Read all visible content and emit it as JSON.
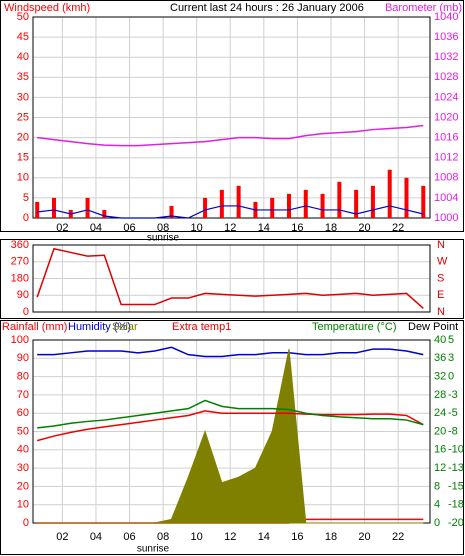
{
  "chart_data": [
    {
      "type": "bar",
      "title": "Current last 24 hours : 26 January 2006",
      "annotation": "sunrise",
      "x": [
        0.5,
        1.5,
        2.5,
        3.5,
        4.5,
        5.5,
        6.5,
        7.5,
        8.5,
        9.5,
        10.5,
        11.5,
        12.5,
        13.5,
        14.5,
        15.5,
        16.5,
        17.5,
        18.5,
        19.5,
        20.5,
        21.5,
        22.5,
        23.5
      ],
      "xlim": [
        0.25,
        23.9
      ],
      "xticks": [
        {
          "value": 2,
          "label": "02"
        },
        {
          "value": 4,
          "label": "04"
        },
        {
          "value": 6,
          "label": "06"
        },
        {
          "value": 8,
          "label": "08"
        },
        10,
        12,
        14,
        16,
        18,
        20,
        22
      ],
      "ylim": [
        0,
        50
      ],
      "yticks": [
        0,
        5,
        10,
        15,
        20,
        25,
        30,
        35,
        40,
        45,
        50
      ],
      "y2lim": [
        1000,
        1040
      ],
      "y2ticks": [
        1000,
        1004,
        1008,
        1012,
        1016,
        1020,
        1024,
        1028,
        1032,
        1036,
        1040
      ],
      "grid": true,
      "series": [
        {
          "name": "Windspeed (kmh)",
          "color": "#ff0000",
          "style": "bar",
          "values": [
            4,
            5,
            2,
            5,
            2,
            0,
            0,
            0,
            3,
            0,
            5,
            7,
            8,
            4,
            5,
            6,
            7,
            6,
            9,
            7,
            8,
            12,
            10,
            8
          ],
          "average_color": "#0000cc",
          "average": [
            1.5,
            2,
            1,
            2,
            0.5,
            0,
            0,
            0,
            0.5,
            0,
            2,
            3,
            3,
            2,
            2,
            2,
            3,
            2,
            2,
            1,
            2,
            3,
            2,
            1
          ]
        },
        {
          "name": "Barometer (mb)",
          "color": "#e020e0",
          "style": "line",
          "axis": "y2",
          "values": [
            1016,
            1015.6,
            1015.2,
            1014.8,
            1014.5,
            1014.4,
            1014.4,
            1014.6,
            1014.8,
            1015,
            1015.2,
            1015.6,
            1016,
            1016,
            1015.8,
            1015.8,
            1016.4,
            1016.8,
            1017,
            1017.2,
            1017.6,
            1017.8,
            1018,
            1018.4
          ]
        }
      ]
    },
    {
      "type": "line",
      "x": [
        0.5,
        1.5,
        2.5,
        3.5,
        4.5,
        5.5,
        6.5,
        7.5,
        8.5,
        9.5,
        10.5,
        11.5,
        12.5,
        13.5,
        14.5,
        15.5,
        16.5,
        17.5,
        18.5,
        19.5,
        20.5,
        21.5,
        22.5,
        23.5
      ],
      "xlim": [
        0.25,
        23.9
      ],
      "xticks": [
        2,
        4,
        6,
        8,
        10,
        12,
        14,
        16,
        18,
        20,
        22
      ],
      "ylim": [
        0,
        360
      ],
      "yticks": [
        0,
        90,
        180,
        270,
        360
      ],
      "y2lim": [
        0,
        360
      ],
      "y2ticks": [
        {
          "value": 0,
          "label": "N"
        },
        {
          "value": 90,
          "label": "E"
        },
        {
          "value": 180,
          "label": "S"
        },
        {
          "value": 270,
          "label": "W"
        },
        {
          "value": 360,
          "label": "N"
        }
      ],
      "grid": true,
      "series": [
        {
          "color": "#dd0000",
          "style": "line",
          "values": [
            80,
            340,
            320,
            300,
            305,
            40,
            40,
            40,
            75,
            75,
            100,
            95,
            90,
            85,
            90,
            95,
            100,
            90,
            95,
            100,
            90,
            95,
            100,
            20
          ]
        }
      ]
    },
    {
      "type": "line",
      "annotation": "sunrise",
      "x": [
        0.5,
        1.5,
        2.5,
        3.5,
        4.5,
        5.5,
        6.5,
        7.5,
        8.5,
        9.5,
        10.5,
        11.5,
        12.5,
        13.5,
        14.5,
        15.5,
        16.5,
        17.5,
        18.5,
        19.5,
        20.5,
        21.5,
        22.5,
        23.5
      ],
      "xlim": [
        0.25,
        23.9
      ],
      "xticks": [
        {
          "value": 2,
          "label": "02"
        },
        {
          "value": 4,
          "label": "04"
        },
        {
          "value": 6,
          "label": "06"
        },
        {
          "value": 8,
          "label": "08"
        },
        10,
        12,
        14,
        16,
        18,
        20,
        22
      ],
      "ylim": [
        0,
        100
      ],
      "yticks": [
        0,
        10,
        20,
        30,
        40,
        50,
        60,
        70,
        80,
        90,
        100
      ],
      "y2lim": [
        0,
        40
      ],
      "y2ticks": [
        0,
        4,
        8,
        12,
        16,
        20,
        24,
        28,
        32,
        36,
        40
      ],
      "y3lim": [
        -20,
        5
      ],
      "y3ticks": [
        5,
        {
          "value": 2.5,
          "label": "3"
        },
        0,
        {
          "value": -2.5,
          "label": "-3"
        },
        -5,
        {
          "value": -7.5,
          "label": "-8"
        },
        -10,
        {
          "value": -12.5,
          "label": "-13"
        },
        -15,
        {
          "value": -17.5,
          "label": "-18"
        },
        -20
      ],
      "grid": true,
      "series": [
        {
          "name": "Rainfall (mm)",
          "color": "#ff0000",
          "style": "line",
          "values": [
            0,
            0,
            0,
            0,
            0,
            0,
            0,
            0,
            0,
            0,
            0,
            0,
            0,
            0,
            0,
            0,
            2,
            2,
            2,
            2,
            2,
            2,
            2,
            2
          ]
        },
        {
          "name": "Humidity (%)",
          "color": "#0000cc",
          "style": "line",
          "values": [
            92,
            92,
            93,
            94,
            94,
            94,
            93,
            94,
            96,
            92,
            91,
            91,
            92,
            92,
            93,
            93,
            92,
            92,
            93,
            93,
            95,
            95,
            94,
            92
          ]
        },
        {
          "name": "Solar",
          "color": "#808000",
          "style": "area",
          "values": [
            0,
            0,
            0,
            0,
            0,
            0,
            0,
            0,
            2,
            25,
            50,
            22,
            25,
            30,
            50,
            95,
            0,
            0,
            0,
            0,
            0,
            0,
            0,
            0
          ]
        },
        {
          "name": "Extra temp1",
          "color": "#ee0000",
          "style": "line",
          "axis": "y2",
          "values": [
            18,
            19,
            19.8,
            20.5,
            21,
            21.5,
            22,
            22.5,
            23,
            23.5,
            24.5,
            24,
            24,
            24,
            24,
            24,
            23.8,
            23.7,
            23.7,
            23.7,
            23.8,
            23.8,
            23.5,
            21.5
          ]
        },
        {
          "name": "Temperature (°C)",
          "color": "#008000",
          "style": "line",
          "axis": "y2",
          "values": [
            20.8,
            21.2,
            21.8,
            22.2,
            22.5,
            23,
            23.5,
            24,
            24.5,
            25,
            26.8,
            25.5,
            25,
            25,
            25,
            24.8,
            24,
            23.5,
            23.2,
            23,
            22.8,
            22.8,
            22.5,
            21.5
          ]
        },
        {
          "name": "Dew Point",
          "color": "#000000",
          "style": "none"
        }
      ]
    }
  ]
}
